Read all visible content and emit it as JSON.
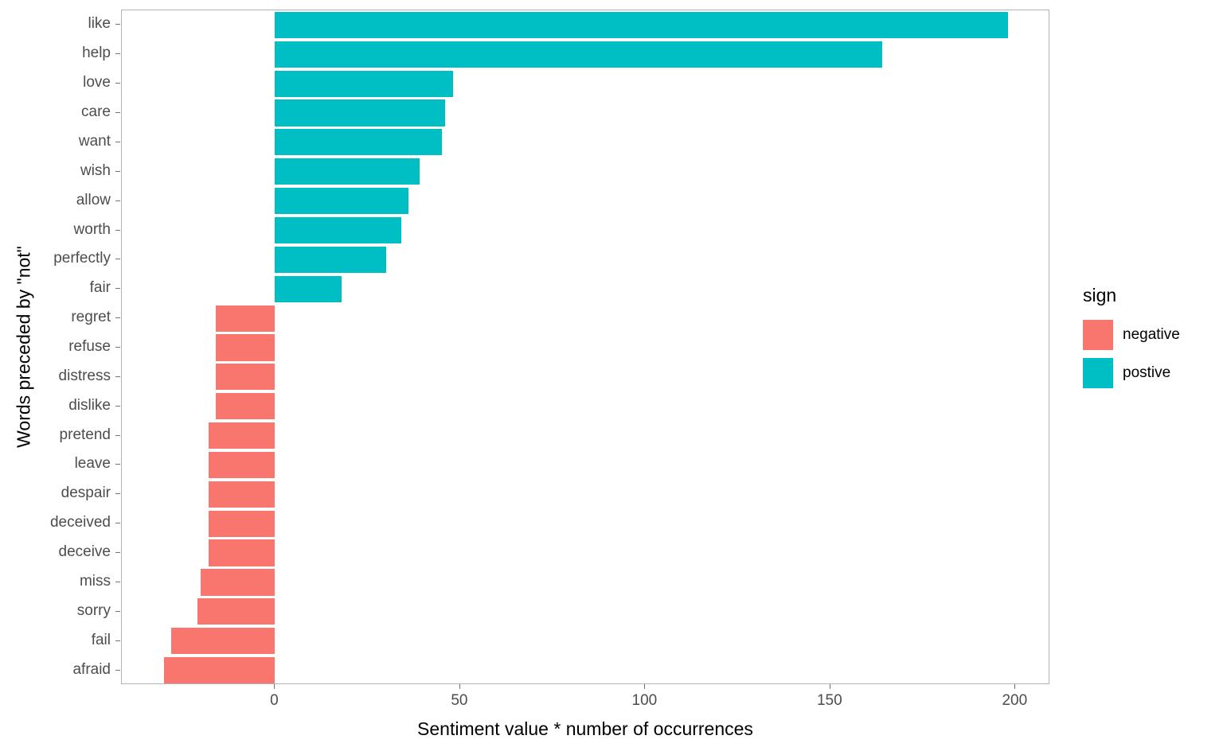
{
  "chart_data": {
    "type": "bar",
    "orientation": "horizontal",
    "title": "",
    "xlabel": "Sentiment value * number of occurrences",
    "ylabel": "Words preceded by \"not\"",
    "xlim": [
      -41.4,
      209.4
    ],
    "x_ticks": [
      0,
      50,
      100,
      150,
      200
    ],
    "grid": false,
    "legend_position": "right",
    "categories": [
      "like",
      "help",
      "love",
      "care",
      "want",
      "wish",
      "allow",
      "worth",
      "perfectly",
      "fair",
      "regret",
      "refuse",
      "distress",
      "dislike",
      "pretend",
      "leave",
      "despair",
      "deceived",
      "deceive",
      "miss",
      "sorry",
      "fail",
      "afraid"
    ],
    "values": [
      198,
      164,
      48,
      46,
      45,
      39,
      36,
      34,
      30,
      18,
      -16,
      -16,
      -16,
      -16,
      -18,
      -18,
      -18,
      -18,
      -18,
      -20,
      -21,
      -28,
      -30
    ]
  },
  "legend": {
    "title": "sign",
    "items": [
      {
        "label": "negative",
        "color": "#F8766D"
      },
      {
        "label": "postive",
        "color": "#00BFC4"
      }
    ]
  },
  "colors": {
    "negative": "#F8766D",
    "positive": "#00BFC4"
  }
}
